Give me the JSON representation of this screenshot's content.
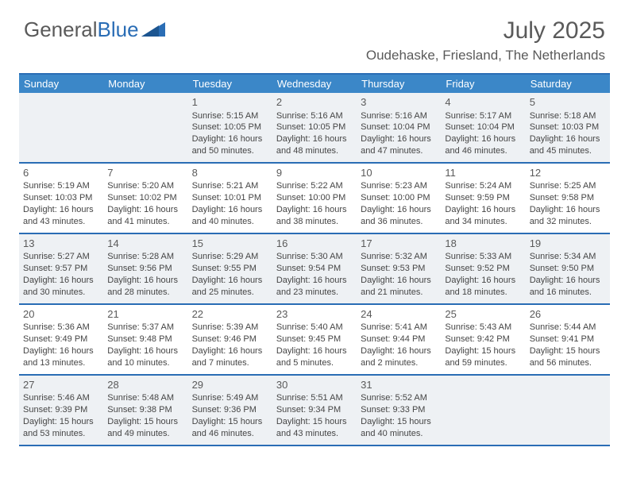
{
  "brand": {
    "part1": "General",
    "part2": "Blue"
  },
  "title": "July 2025",
  "location": "Oudehaske, Friesland, The Netherlands",
  "colors": {
    "header_bg": "#3b87c8",
    "border": "#2a6db5",
    "shade": "#eef1f4",
    "text": "#454545",
    "title_text": "#5a5a5a"
  },
  "font": {
    "day_size": 13,
    "cell_size": 11,
    "title_size": 30,
    "location_size": 17
  },
  "day_names": [
    "Sunday",
    "Monday",
    "Tuesday",
    "Wednesday",
    "Thursday",
    "Friday",
    "Saturday"
  ],
  "weeks": [
    [
      {
        "day": "",
        "sunrise": "",
        "sunset": "",
        "daylight": ""
      },
      {
        "day": "",
        "sunrise": "",
        "sunset": "",
        "daylight": ""
      },
      {
        "day": "1",
        "sunrise": "Sunrise: 5:15 AM",
        "sunset": "Sunset: 10:05 PM",
        "daylight": "Daylight: 16 hours and 50 minutes."
      },
      {
        "day": "2",
        "sunrise": "Sunrise: 5:16 AM",
        "sunset": "Sunset: 10:05 PM",
        "daylight": "Daylight: 16 hours and 48 minutes."
      },
      {
        "day": "3",
        "sunrise": "Sunrise: 5:16 AM",
        "sunset": "Sunset: 10:04 PM",
        "daylight": "Daylight: 16 hours and 47 minutes."
      },
      {
        "day": "4",
        "sunrise": "Sunrise: 5:17 AM",
        "sunset": "Sunset: 10:04 PM",
        "daylight": "Daylight: 16 hours and 46 minutes."
      },
      {
        "day": "5",
        "sunrise": "Sunrise: 5:18 AM",
        "sunset": "Sunset: 10:03 PM",
        "daylight": "Daylight: 16 hours and 45 minutes."
      }
    ],
    [
      {
        "day": "6",
        "sunrise": "Sunrise: 5:19 AM",
        "sunset": "Sunset: 10:03 PM",
        "daylight": "Daylight: 16 hours and 43 minutes."
      },
      {
        "day": "7",
        "sunrise": "Sunrise: 5:20 AM",
        "sunset": "Sunset: 10:02 PM",
        "daylight": "Daylight: 16 hours and 41 minutes."
      },
      {
        "day": "8",
        "sunrise": "Sunrise: 5:21 AM",
        "sunset": "Sunset: 10:01 PM",
        "daylight": "Daylight: 16 hours and 40 minutes."
      },
      {
        "day": "9",
        "sunrise": "Sunrise: 5:22 AM",
        "sunset": "Sunset: 10:00 PM",
        "daylight": "Daylight: 16 hours and 38 minutes."
      },
      {
        "day": "10",
        "sunrise": "Sunrise: 5:23 AM",
        "sunset": "Sunset: 10:00 PM",
        "daylight": "Daylight: 16 hours and 36 minutes."
      },
      {
        "day": "11",
        "sunrise": "Sunrise: 5:24 AM",
        "sunset": "Sunset: 9:59 PM",
        "daylight": "Daylight: 16 hours and 34 minutes."
      },
      {
        "day": "12",
        "sunrise": "Sunrise: 5:25 AM",
        "sunset": "Sunset: 9:58 PM",
        "daylight": "Daylight: 16 hours and 32 minutes."
      }
    ],
    [
      {
        "day": "13",
        "sunrise": "Sunrise: 5:27 AM",
        "sunset": "Sunset: 9:57 PM",
        "daylight": "Daylight: 16 hours and 30 minutes."
      },
      {
        "day": "14",
        "sunrise": "Sunrise: 5:28 AM",
        "sunset": "Sunset: 9:56 PM",
        "daylight": "Daylight: 16 hours and 28 minutes."
      },
      {
        "day": "15",
        "sunrise": "Sunrise: 5:29 AM",
        "sunset": "Sunset: 9:55 PM",
        "daylight": "Daylight: 16 hours and 25 minutes."
      },
      {
        "day": "16",
        "sunrise": "Sunrise: 5:30 AM",
        "sunset": "Sunset: 9:54 PM",
        "daylight": "Daylight: 16 hours and 23 minutes."
      },
      {
        "day": "17",
        "sunrise": "Sunrise: 5:32 AM",
        "sunset": "Sunset: 9:53 PM",
        "daylight": "Daylight: 16 hours and 21 minutes."
      },
      {
        "day": "18",
        "sunrise": "Sunrise: 5:33 AM",
        "sunset": "Sunset: 9:52 PM",
        "daylight": "Daylight: 16 hours and 18 minutes."
      },
      {
        "day": "19",
        "sunrise": "Sunrise: 5:34 AM",
        "sunset": "Sunset: 9:50 PM",
        "daylight": "Daylight: 16 hours and 16 minutes."
      }
    ],
    [
      {
        "day": "20",
        "sunrise": "Sunrise: 5:36 AM",
        "sunset": "Sunset: 9:49 PM",
        "daylight": "Daylight: 16 hours and 13 minutes."
      },
      {
        "day": "21",
        "sunrise": "Sunrise: 5:37 AM",
        "sunset": "Sunset: 9:48 PM",
        "daylight": "Daylight: 16 hours and 10 minutes."
      },
      {
        "day": "22",
        "sunrise": "Sunrise: 5:39 AM",
        "sunset": "Sunset: 9:46 PM",
        "daylight": "Daylight: 16 hours and 7 minutes."
      },
      {
        "day": "23",
        "sunrise": "Sunrise: 5:40 AM",
        "sunset": "Sunset: 9:45 PM",
        "daylight": "Daylight: 16 hours and 5 minutes."
      },
      {
        "day": "24",
        "sunrise": "Sunrise: 5:41 AM",
        "sunset": "Sunset: 9:44 PM",
        "daylight": "Daylight: 16 hours and 2 minutes."
      },
      {
        "day": "25",
        "sunrise": "Sunrise: 5:43 AM",
        "sunset": "Sunset: 9:42 PM",
        "daylight": "Daylight: 15 hours and 59 minutes."
      },
      {
        "day": "26",
        "sunrise": "Sunrise: 5:44 AM",
        "sunset": "Sunset: 9:41 PM",
        "daylight": "Daylight: 15 hours and 56 minutes."
      }
    ],
    [
      {
        "day": "27",
        "sunrise": "Sunrise: 5:46 AM",
        "sunset": "Sunset: 9:39 PM",
        "daylight": "Daylight: 15 hours and 53 minutes."
      },
      {
        "day": "28",
        "sunrise": "Sunrise: 5:48 AM",
        "sunset": "Sunset: 9:38 PM",
        "daylight": "Daylight: 15 hours and 49 minutes."
      },
      {
        "day": "29",
        "sunrise": "Sunrise: 5:49 AM",
        "sunset": "Sunset: 9:36 PM",
        "daylight": "Daylight: 15 hours and 46 minutes."
      },
      {
        "day": "30",
        "sunrise": "Sunrise: 5:51 AM",
        "sunset": "Sunset: 9:34 PM",
        "daylight": "Daylight: 15 hours and 43 minutes."
      },
      {
        "day": "31",
        "sunrise": "Sunrise: 5:52 AM",
        "sunset": "Sunset: 9:33 PM",
        "daylight": "Daylight: 15 hours and 40 minutes."
      },
      {
        "day": "",
        "sunrise": "",
        "sunset": "",
        "daylight": ""
      },
      {
        "day": "",
        "sunrise": "",
        "sunset": "",
        "daylight": ""
      }
    ]
  ]
}
